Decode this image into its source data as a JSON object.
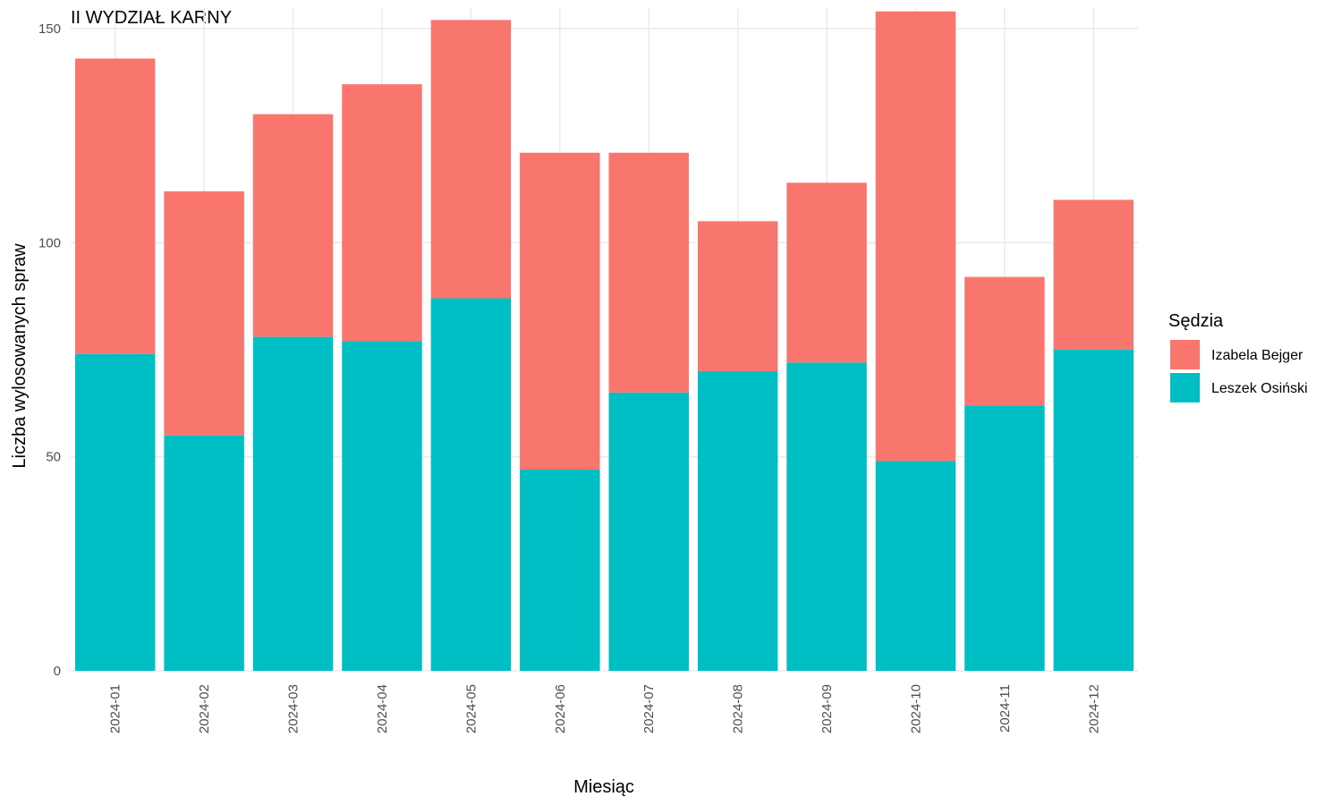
{
  "chart_data": {
    "type": "bar",
    "stacked": true,
    "title": "II WYDZIAŁ KARNY",
    "xlabel": "Miesiąc",
    "ylabel": "Liczba wylosowanych spraw",
    "categories": [
      "2024-01",
      "2024-02",
      "2024-03",
      "2024-04",
      "2024-05",
      "2024-06",
      "2024-07",
      "2024-08",
      "2024-09",
      "2024-10",
      "2024-11",
      "2024-12"
    ],
    "series": [
      {
        "name": "Leszek Osiński",
        "color": "#00BFC4",
        "values": [
          74,
          55,
          78,
          77,
          87,
          47,
          65,
          70,
          72,
          49,
          62,
          75
        ]
      },
      {
        "name": "Izabela Bejger",
        "color": "#F8766D",
        "values": [
          69,
          57,
          52,
          60,
          65,
          74,
          56,
          35,
          42,
          105,
          30,
          35
        ]
      }
    ],
    "ylim": [
      0,
      155
    ],
    "yticks": [
      0,
      50,
      100,
      150
    ],
    "grid": true,
    "legend": {
      "title": "Sędzia",
      "position": "right",
      "items": [
        {
          "label": "Izabela Bejger",
          "color": "#F8766D"
        },
        {
          "label": "Leszek Osiński",
          "color": "#00BFC4"
        }
      ]
    }
  }
}
